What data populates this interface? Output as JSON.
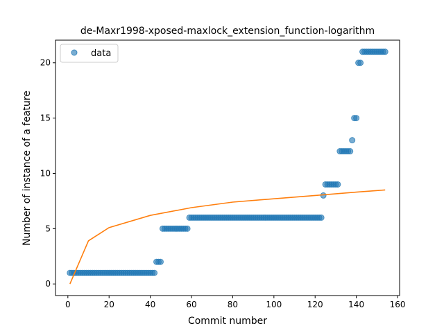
{
  "chart_data": {
    "type": "scatter",
    "title": "de-Maxr1998-xposed-maxlock_extension_function-logarithm",
    "xlabel": "Commit number",
    "ylabel": "Number of instance of a feature",
    "xlim": [
      -6,
      161
    ],
    "ylim": [
      -1.05,
      22.05
    ],
    "xticks": [
      0,
      20,
      40,
      60,
      80,
      100,
      120,
      140,
      160
    ],
    "yticks": [
      0,
      5,
      10,
      15,
      20
    ],
    "grid": false,
    "legend": {
      "placement": "top-left",
      "entries": [
        "data"
      ]
    },
    "series": [
      {
        "name": "data",
        "kind": "scatter",
        "color": "#1f77b4",
        "segments": [
          {
            "x_from": 1,
            "x_to": 42,
            "y": 1
          },
          {
            "x_from": 43,
            "x_to": 45,
            "y": 2
          },
          {
            "x_from": 46,
            "x_to": 58,
            "y": 5
          },
          {
            "x_from": 59,
            "x_to": 123,
            "y": 6
          },
          {
            "x_from": 124,
            "x_to": 124,
            "y": 8
          },
          {
            "x_from": 125,
            "x_to": 131,
            "y": 9
          },
          {
            "x_from": 132,
            "x_to": 137,
            "y": 12
          },
          {
            "x_from": 138,
            "x_to": 138,
            "y": 13
          },
          {
            "x_from": 139,
            "x_to": 140,
            "y": 15
          },
          {
            "x_from": 141,
            "x_to": 142,
            "y": 20
          },
          {
            "x_from": 143,
            "x_to": 154,
            "y": 21
          }
        ]
      },
      {
        "kind": "line",
        "color": "#ff7f0e",
        "fit": "logarithmic",
        "x_range": [
          1,
          154
        ],
        "approx_points": [
          [
            1,
            0
          ],
          [
            10,
            3.9
          ],
          [
            20,
            5.1
          ],
          [
            40,
            6.2
          ],
          [
            60,
            6.9
          ],
          [
            80,
            7.4
          ],
          [
            100,
            7.7
          ],
          [
            120,
            8.0
          ],
          [
            140,
            8.3
          ],
          [
            154,
            8.5
          ]
        ]
      }
    ]
  }
}
